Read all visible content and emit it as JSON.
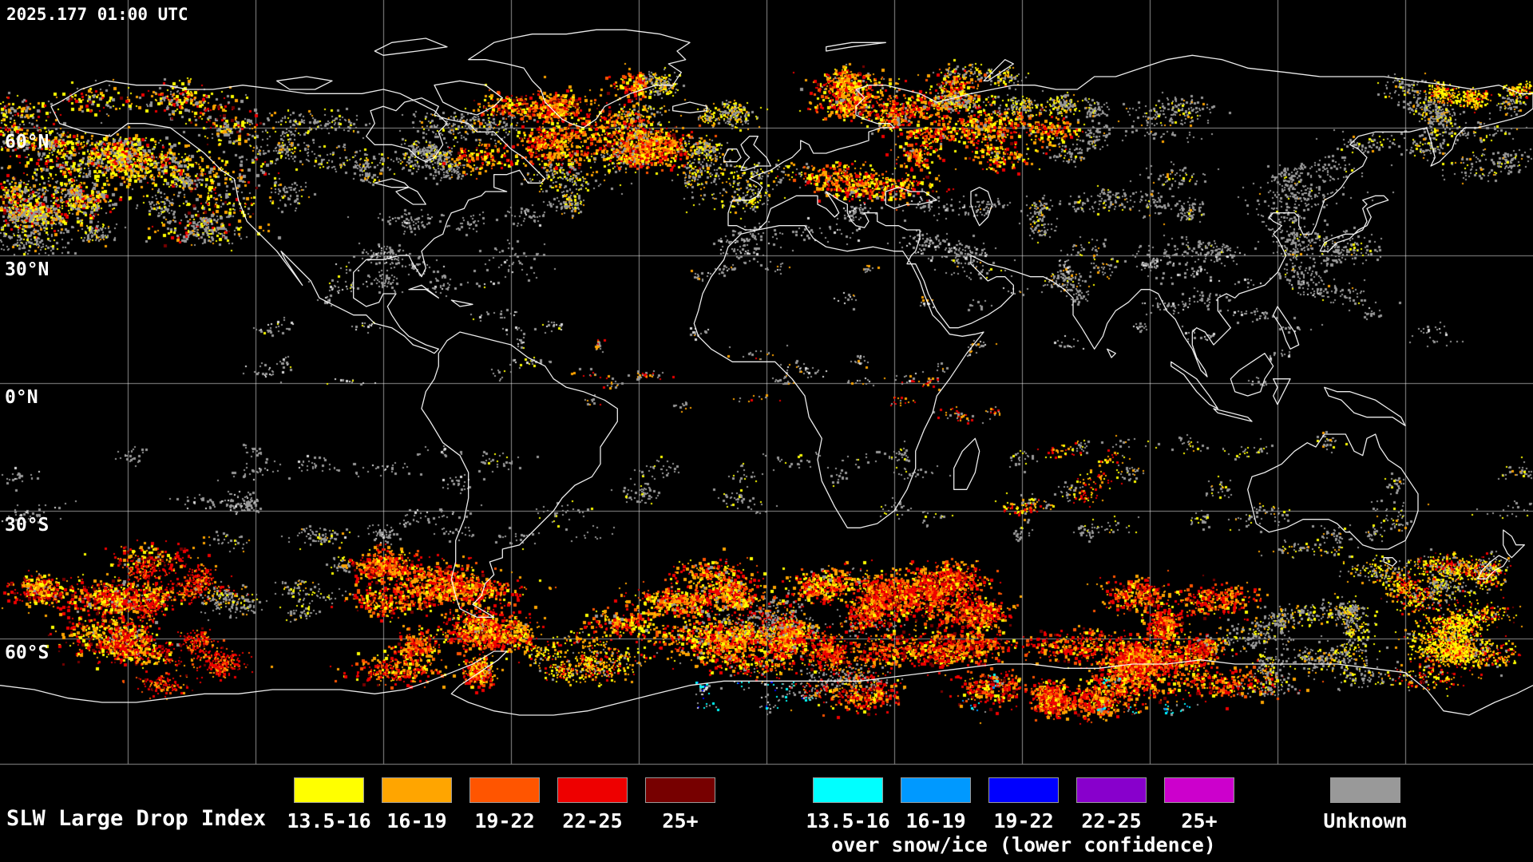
{
  "header": {
    "timestamp": "2025.177 01:00 UTC"
  },
  "map": {
    "background": "#000000",
    "grid_color": "#ffffff",
    "coastline_color": "#ffffff",
    "lat_labels": [
      {
        "label": "60°N"
      },
      {
        "label": "30°N"
      },
      {
        "label": "0°N"
      },
      {
        "label": "30°S"
      },
      {
        "label": "60°S"
      }
    ]
  },
  "legend": {
    "title": "SLW Large Drop Index",
    "regular": {
      "bins": [
        {
          "label": "13.5-16",
          "color": "#ffff00"
        },
        {
          "label": "16-19",
          "color": "#ffa500"
        },
        {
          "label": "19-22",
          "color": "#ff5500"
        },
        {
          "label": "22-25",
          "color": "#ee0000"
        },
        {
          "label": "25+",
          "color": "#770000"
        }
      ]
    },
    "snow": {
      "subtitle": "over snow/ice (lower confidence)",
      "bins": [
        {
          "label": "13.5-16",
          "color": "#00ffff"
        },
        {
          "label": "16-19",
          "color": "#0099ff"
        },
        {
          "label": "19-22",
          "color": "#0000ff"
        },
        {
          "label": "22-25",
          "color": "#8800cc"
        },
        {
          "label": "25+",
          "color": "#cc00cc"
        }
      ]
    },
    "unknown": {
      "label": "Unknown",
      "color": "#999999"
    }
  }
}
